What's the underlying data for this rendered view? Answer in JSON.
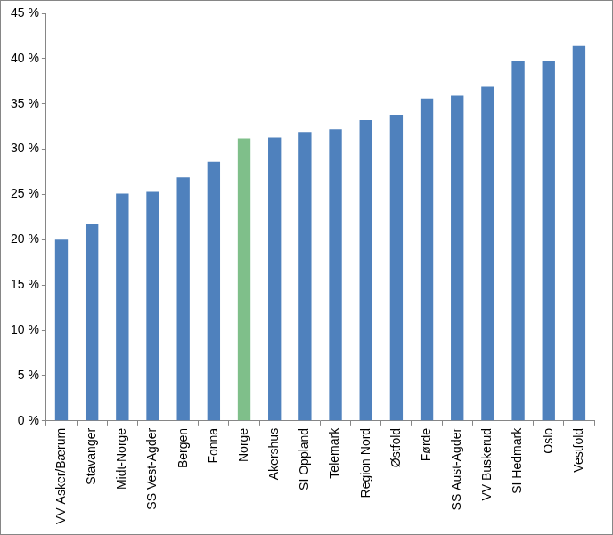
{
  "chart_data": {
    "type": "bar",
    "categories": [
      "VV Asker/Bærum",
      "Stavanger",
      "Midt-Norge",
      "SS Vest-Agder",
      "Bergen",
      "Fonna",
      "Norge",
      "Akershus",
      "SI Oppland",
      "Telemark",
      "Region Nord",
      "Østfold",
      "Førde",
      "SS Aust-Agder",
      "VV Buskerud",
      "SI Hedmark",
      "Oslo",
      "Vestfold"
    ],
    "values": [
      20.0,
      21.7,
      25.1,
      25.3,
      26.9,
      28.6,
      31.2,
      31.3,
      31.9,
      32.2,
      33.2,
      33.8,
      35.6,
      35.9,
      36.9,
      39.7,
      39.7,
      41.4
    ],
    "colors": [
      "#4f81bd",
      "#4f81bd",
      "#4f81bd",
      "#4f81bd",
      "#4f81bd",
      "#4f81bd",
      "#7fbf8a",
      "#4f81bd",
      "#4f81bd",
      "#4f81bd",
      "#4f81bd",
      "#4f81bd",
      "#4f81bd",
      "#4f81bd",
      "#4f81bd",
      "#4f81bd",
      "#4f81bd",
      "#4f81bd"
    ],
    "ylim": [
      0,
      45
    ],
    "yticks": [
      {
        "value": 0,
        "label": "0 %"
      },
      {
        "value": 5,
        "label": "5 %"
      },
      {
        "value": 10,
        "label": "10 %"
      },
      {
        "value": 15,
        "label": "15 %"
      },
      {
        "value": 20,
        "label": "20 %"
      },
      {
        "value": 25,
        "label": "25 %"
      },
      {
        "value": 30,
        "label": "30 %"
      },
      {
        "value": 35,
        "label": "35 %"
      },
      {
        "value": 40,
        "label": "40 %"
      },
      {
        "value": 45,
        "label": "45 %"
      }
    ],
    "grid": false,
    "tick_labels": true
  }
}
